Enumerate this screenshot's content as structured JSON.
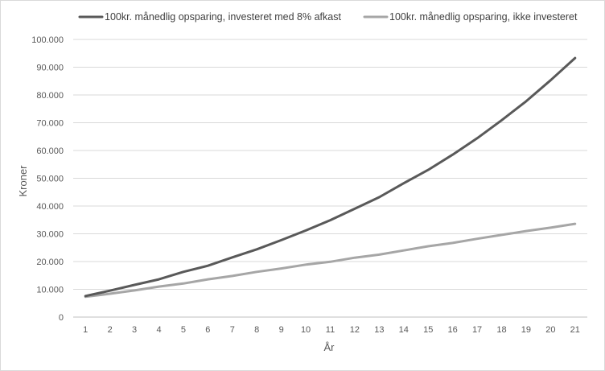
{
  "chart_data": {
    "type": "line",
    "title": "",
    "xlabel": "År",
    "ylabel": "Kroner",
    "x": [
      1,
      2,
      3,
      4,
      5,
      6,
      7,
      8,
      9,
      10,
      11,
      12,
      13,
      14,
      15,
      16,
      17,
      18,
      19,
      20,
      21
    ],
    "x_tick_labels": [
      "1",
      "2",
      "3",
      "4",
      "5",
      "6",
      "7",
      "8",
      "9",
      "10",
      "11",
      "12",
      "13",
      "14",
      "15",
      "16",
      "17",
      "18",
      "19",
      "20",
      "21"
    ],
    "ylim": [
      0,
      100000
    ],
    "y_ticks": [
      0,
      10000,
      20000,
      30000,
      40000,
      50000,
      60000,
      70000,
      80000,
      90000,
      100000
    ],
    "y_tick_labels": [
      "0",
      "10.000",
      "20.000",
      "30.000",
      "40.000",
      "50.000",
      "60.000",
      "70.000",
      "80.000",
      "90.000",
      "100.000"
    ],
    "grid": true,
    "legend_position": "top",
    "series": [
      {
        "name": "100kr. månedlig opsparing, investeret med 8% afkast",
        "color": "#595959",
        "values": [
          7600,
          9500,
          11600,
          13600,
          16300,
          18500,
          21500,
          24400,
          27700,
          31200,
          34900,
          39000,
          43200,
          48200,
          53000,
          58500,
          64400,
          70900,
          77700,
          85300,
          93300
        ]
      },
      {
        "name": "100kr. månedlig opsparing, ikke investeret",
        "color": "#a6a6a6",
        "values": [
          7300,
          8400,
          9600,
          11000,
          12100,
          13600,
          14800,
          16300,
          17500,
          18900,
          19900,
          21400,
          22500,
          24000,
          25500,
          26700,
          28200,
          29600,
          31000,
          32200,
          33600
        ]
      }
    ]
  }
}
